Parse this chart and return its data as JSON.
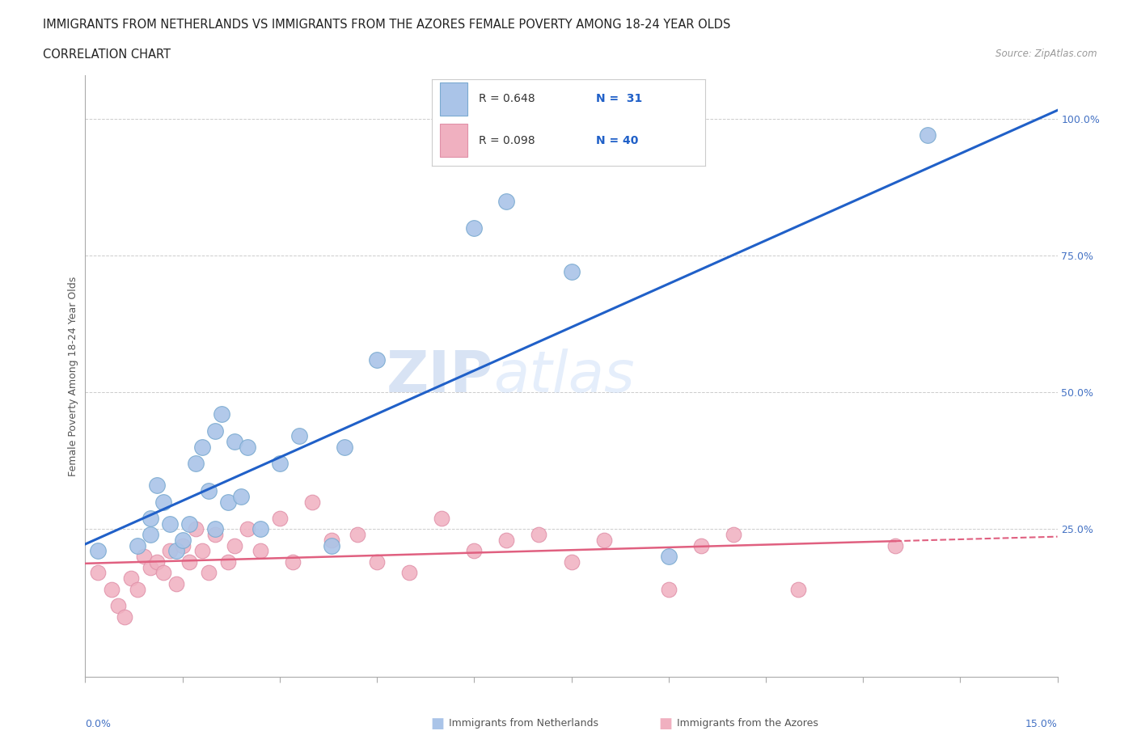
{
  "title_line1": "IMMIGRANTS FROM NETHERLANDS VS IMMIGRANTS FROM THE AZORES FEMALE POVERTY AMONG 18-24 YEAR OLDS",
  "title_line2": "CORRELATION CHART",
  "source_text": "Source: ZipAtlas.com",
  "ylabel": "Female Poverty Among 18-24 Year Olds",
  "right_yticks": [
    0.0,
    0.25,
    0.5,
    0.75,
    1.0
  ],
  "right_yticklabels": [
    "",
    "25.0%",
    "50.0%",
    "75.0%",
    "100.0%"
  ],
  "xlim": [
    0.0,
    0.15
  ],
  "ylim": [
    -0.02,
    1.08
  ],
  "watermark_zip": "ZIP",
  "watermark_atlas": "atlas",
  "blue_color": "#aac4e8",
  "blue_edge": "#7aaad0",
  "pink_color": "#f0b0c0",
  "pink_edge": "#e090a8",
  "trendline_blue": "#2060c8",
  "trendline_pink": "#e06080",
  "netherlands_x": [
    0.002,
    0.008,
    0.01,
    0.01,
    0.011,
    0.012,
    0.013,
    0.014,
    0.015,
    0.016,
    0.017,
    0.018,
    0.019,
    0.02,
    0.02,
    0.021,
    0.022,
    0.023,
    0.024,
    0.025,
    0.027,
    0.03,
    0.033,
    0.038,
    0.04,
    0.045,
    0.06,
    0.065,
    0.075,
    0.09,
    0.13
  ],
  "netherlands_y": [
    0.21,
    0.22,
    0.24,
    0.27,
    0.33,
    0.3,
    0.26,
    0.21,
    0.23,
    0.26,
    0.37,
    0.4,
    0.32,
    0.25,
    0.43,
    0.46,
    0.3,
    0.41,
    0.31,
    0.4,
    0.25,
    0.37,
    0.42,
    0.22,
    0.4,
    0.56,
    0.8,
    0.85,
    0.72,
    0.2,
    0.97
  ],
  "azores_x": [
    0.002,
    0.004,
    0.005,
    0.006,
    0.007,
    0.008,
    0.009,
    0.01,
    0.011,
    0.012,
    0.013,
    0.014,
    0.015,
    0.016,
    0.017,
    0.018,
    0.019,
    0.02,
    0.022,
    0.023,
    0.025,
    0.027,
    0.03,
    0.032,
    0.035,
    0.038,
    0.042,
    0.045,
    0.05,
    0.055,
    0.06,
    0.065,
    0.07,
    0.075,
    0.08,
    0.09,
    0.095,
    0.1,
    0.11,
    0.125
  ],
  "azores_y": [
    0.17,
    0.14,
    0.11,
    0.09,
    0.16,
    0.14,
    0.2,
    0.18,
    0.19,
    0.17,
    0.21,
    0.15,
    0.22,
    0.19,
    0.25,
    0.21,
    0.17,
    0.24,
    0.19,
    0.22,
    0.25,
    0.21,
    0.27,
    0.19,
    0.3,
    0.23,
    0.24,
    0.19,
    0.17,
    0.27,
    0.21,
    0.23,
    0.24,
    0.19,
    0.23,
    0.14,
    0.22,
    0.24,
    0.14,
    0.22
  ],
  "legend_texts": [
    [
      "R = 0.648",
      "N =  31"
    ],
    [
      "R = 0.098",
      "N = 40"
    ]
  ]
}
